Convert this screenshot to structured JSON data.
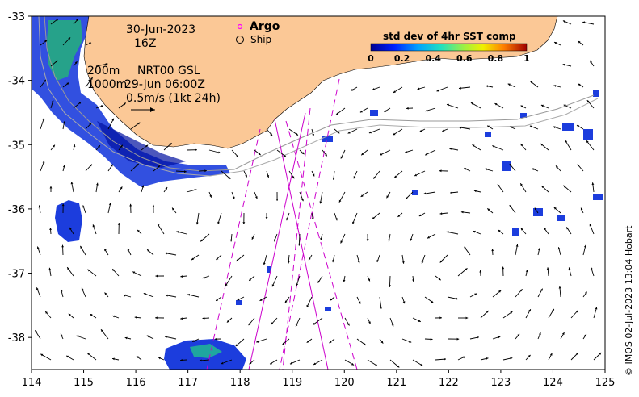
{
  "map": {
    "date": "30-Jun-2023",
    "hour": "16Z",
    "depth_line_1": "200m",
    "depth_line_2": "1000m",
    "product": "NRT00 GSL",
    "product_time": "29-Jun 06:00Z",
    "vector_scale": "0.5m/s (1kt 24h)",
    "legend_argo": "Argo",
    "legend_ship": "Ship",
    "credit": "© IMOS 02-Jul-2023 13:04 Hobart",
    "colorbar": {
      "title": "std dev of 4hr SST comp",
      "ticks": [
        "0",
        "0.2",
        "0.4",
        "0.6",
        "0.8",
        "1"
      ],
      "min": 0,
      "max": 1
    },
    "lon_axis": {
      "min": 114,
      "max": 125,
      "ticks": [
        "114",
        "115",
        "116",
        "117",
        "118",
        "119",
        "120",
        "121",
        "122",
        "123",
        "124",
        "125"
      ]
    },
    "lat_axis": {
      "min": -38.5,
      "max": -33,
      "ticks": [
        "-33",
        "-34",
        "-35",
        "-36",
        "-37",
        "-38"
      ]
    },
    "colors": {
      "land": "#fbc896",
      "ocean": "#ffffff",
      "track": "#cc00cc",
      "argo_marker": "#ff00ff"
    }
  }
}
